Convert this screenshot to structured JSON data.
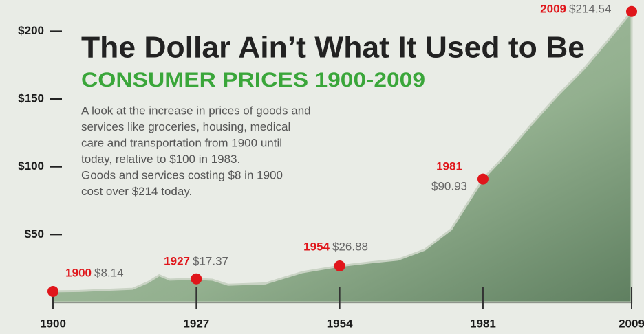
{
  "chart_data": {
    "type": "area",
    "title": "The Dollar Ain’t What It Used to Be",
    "subtitle": "CONSUMER PRICES 1900-2009",
    "description": [
      "A look at the increase in prices of goods and",
      "services like groceries, housing, medical",
      "care and transportation from 1900 until",
      "today, relative to $100 in 1983.",
      "Goods and services costing $8 in 1900",
      "cost over $214 today."
    ],
    "x": [
      1900,
      1905,
      1910,
      1915,
      1918,
      1920,
      1922,
      1927,
      1930,
      1933,
      1940,
      1947,
      1954,
      1960,
      1965,
      1970,
      1975,
      1981,
      1985,
      1990,
      1995,
      2000,
      2005,
      2009
    ],
    "values": [
      8.14,
      8.4,
      9.3,
      10.1,
      15.1,
      20,
      16.8,
      17.37,
      16.7,
      13,
      14,
      22.3,
      26.88,
      29.6,
      31.5,
      38.8,
      53.8,
      90.93,
      107.6,
      130.7,
      152.4,
      172.2,
      195.3,
      214.54
    ],
    "color": "#93b08f",
    "highlights": {
      "x": [
        1900,
        1927,
        1954,
        1981,
        2009
      ],
      "values": [
        8.14,
        17.37,
        26.88,
        90.93,
        214.54
      ],
      "value_labels": [
        "$8.14",
        "$17.37",
        "$26.88",
        "$90.93",
        "$214.54"
      ],
      "color": "#e0161b"
    },
    "xlim": [
      1900,
      2009
    ],
    "xticks": [
      1900,
      1927,
      1954,
      1981,
      2009
    ],
    "ylim": [
      0,
      223
    ],
    "yticks": [
      {
        "value": 50,
        "label": "$50"
      },
      {
        "value": 100,
        "label": "$100"
      },
      {
        "value": 150,
        "label": "$150"
      },
      {
        "value": 200,
        "label": "$200"
      }
    ]
  }
}
